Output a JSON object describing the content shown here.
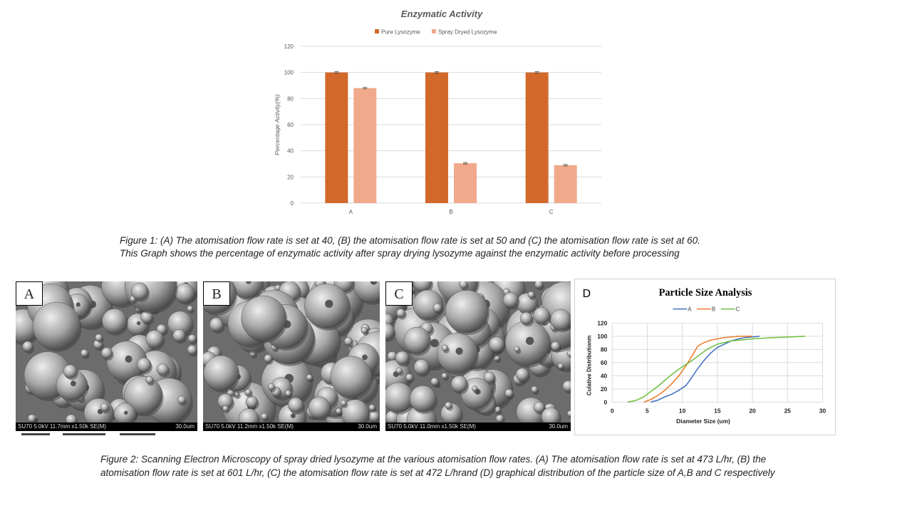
{
  "chart_data": [
    {
      "type": "bar",
      "title": "Enzymatic Activity",
      "categories": [
        "A",
        "B",
        "C"
      ],
      "series": [
        {
          "name": "Pure Lysozyme",
          "values": [
            100,
            100,
            100
          ],
          "color": "#d2692b"
        },
        {
          "name": "Spray Dryed Lysozyme",
          "values": [
            88,
            30.5,
            29
          ],
          "color": "#f0a98a"
        }
      ],
      "xlabel": "",
      "ylabel": "Percentage Activity(%)",
      "ylim": [
        0,
        120
      ],
      "yticks": [
        "0",
        "20",
        "40",
        "60",
        "80",
        "100",
        "120"
      ],
      "grid": true,
      "legend_position": "top"
    },
    {
      "type": "line",
      "title": "Particle Size Analysis",
      "panel_label": "D",
      "xlabel": "Diameter Size (um)",
      "ylabel": "Culative Distributionm",
      "xlim": [
        0,
        30
      ],
      "ylim": [
        0,
        120
      ],
      "xticks": [
        "0",
        "5",
        "10",
        "15",
        "20",
        "25",
        "30"
      ],
      "yticks": [
        "0",
        "20",
        "40",
        "60",
        "80",
        "100",
        "120"
      ],
      "grid": true,
      "legend_position": "top",
      "series": [
        {
          "name": "A",
          "color": "#4472c4",
          "x": [
            5.5,
            6.5,
            7.5,
            8.5,
            9.5,
            10.5,
            11.2,
            12,
            13,
            14,
            15,
            16,
            17,
            18,
            19,
            20,
            21
          ],
          "y": [
            0,
            3,
            8,
            12,
            18,
            25,
            35,
            48,
            62,
            74,
            83,
            88,
            93,
            96,
            98,
            99,
            100
          ]
        },
        {
          "name": "B",
          "color": "#ed7d31",
          "x": [
            4.5,
            5.5,
            6.5,
            7.5,
            8.5,
            9.5,
            10.5,
            11.5,
            12.2,
            13,
            14,
            15,
            16,
            17,
            18,
            19,
            20
          ],
          "y": [
            0,
            4,
            10,
            18,
            28,
            40,
            55,
            72,
            85,
            90,
            94,
            96,
            98,
            99,
            100,
            100,
            100
          ]
        },
        {
          "name": "C",
          "color": "#70c040",
          "x": [
            2.2,
            3.5,
            4.5,
            5.5,
            6.5,
            7.5,
            8.5,
            9.5,
            10.5,
            11.5,
            12.5,
            13.5,
            15,
            17,
            20,
            23,
            25.5,
            27.5
          ],
          "y": [
            0,
            3,
            8,
            16,
            24,
            33,
            42,
            50,
            57,
            64,
            72,
            80,
            88,
            93,
            96,
            98,
            99,
            100
          ]
        }
      ]
    }
  ],
  "captions": {
    "figure1_line1": "Figure 1: (A) The atomisation flow rate is set at 40, (B) the atomisation flow rate is set at 50 and (C) the atomisation flow rate is set at 60.",
    "figure1_line2": "This Graph shows the percentage of enzymatic activity after spray drying lysozyme against the enzymatic activity before processing",
    "figure2_line1": "Figure 2: Scanning Electron Microscopy of spray  dried lysozyme at the various atomisation flow rates. (A) The atomisation flow rate is set at 473 L/hr, (B) the",
    "figure2_line2": "atomisation flow rate is set at 601 L/hr, (C) the atomisation flow rate is set at 472 L/hrand  (D) graphical distribution of the particle size of A,B and C respectively"
  },
  "sem_images": [
    {
      "label": "A",
      "info": "SU70 5.0kV 11.7mm x1.50k SE(M)",
      "scale": "30.0um"
    },
    {
      "label": "B",
      "info": "SU70 5.0kV 11.2mm x1.50k SE(M)",
      "scale": "30.0um"
    },
    {
      "label": "C",
      "info": "SU70 5.0kV 11.0mm x1.50k SE(M)",
      "scale": "30.0um"
    }
  ]
}
